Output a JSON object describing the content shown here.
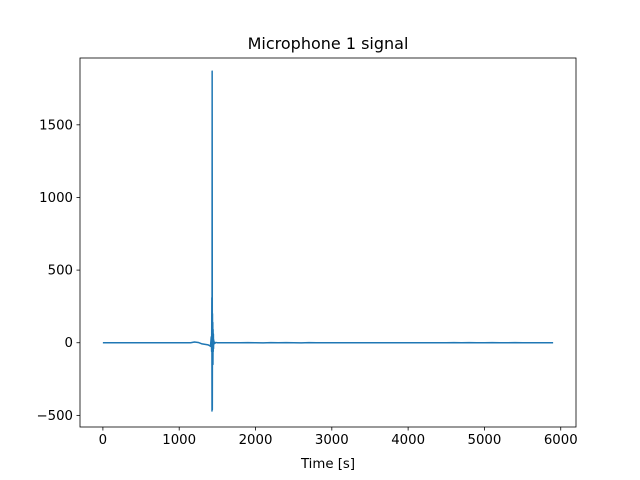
{
  "chart_data": {
    "type": "line",
    "title": "Microphone 1 signal",
    "xlabel": "Time [s]",
    "ylabel": "",
    "xlim": [
      -300,
      6200
    ],
    "ylim": [
      -580,
      1960
    ],
    "xticks": [
      0,
      1000,
      2000,
      3000,
      4000,
      5000,
      6000
    ],
    "yticks": [
      -500,
      0,
      500,
      1000,
      1500
    ],
    "grid": false,
    "legend": "none",
    "series": [
      {
        "color": "#1f77b4",
        "x": [
          0,
          1000,
          1150,
          1200,
          1250,
          1300,
          1350,
          1380,
          1400,
          1410,
          1420,
          1425,
          1428,
          1430,
          1432,
          1434,
          1436,
          1438,
          1440,
          1442,
          1444,
          1446,
          1448,
          1450,
          1452,
          1455,
          1460,
          1470,
          1480,
          1500,
          1600,
          1700,
          1800,
          1900,
          2000,
          2100,
          2200,
          2300,
          2400,
          2500,
          2600,
          2700,
          2800,
          2900,
          3000,
          3500,
          4000,
          4500,
          4600,
          4700,
          4800,
          4900,
          5000,
          5100,
          5200,
          5300,
          5400,
          5500,
          5900
        ],
        "y": [
          0,
          0,
          0,
          5,
          2,
          -8,
          -12,
          -15,
          -20,
          -25,
          40,
          -60,
          310,
          -470,
          1870,
          -460,
          200,
          -120,
          140,
          -150,
          90,
          -60,
          60,
          -40,
          20,
          -10,
          5,
          -3,
          2,
          0,
          0,
          0,
          0,
          1,
          0,
          -1,
          1,
          0,
          1,
          0,
          -1,
          1,
          0,
          0,
          0,
          0,
          0,
          0,
          1,
          0,
          1,
          0,
          0,
          1,
          0,
          0,
          1,
          0,
          0
        ]
      }
    ]
  }
}
